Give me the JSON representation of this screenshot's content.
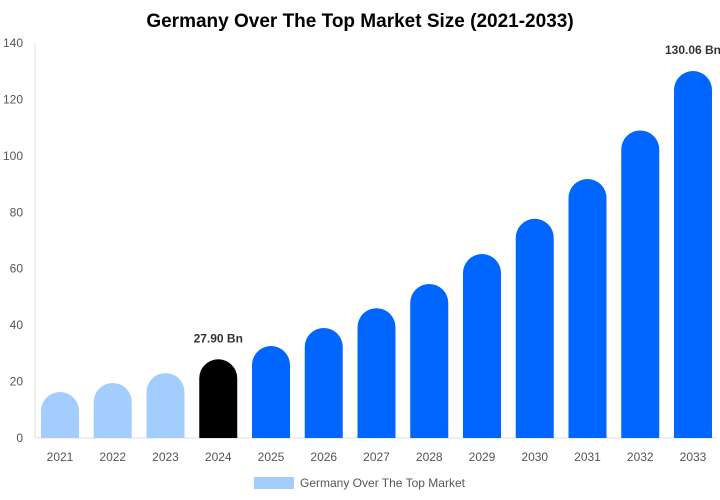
{
  "chart_data": {
    "type": "bar",
    "title": "Germany Over The Top Market Size (2021-2033)",
    "xlabel": "",
    "ylabel": "",
    "ylim": [
      0,
      140
    ],
    "yticks": [
      0,
      20,
      40,
      60,
      80,
      100,
      120,
      140
    ],
    "grid": false,
    "legend_position": "bottom",
    "categories": [
      "2021",
      "2022",
      "2023",
      "2024",
      "2025",
      "2026",
      "2027",
      "2028",
      "2029",
      "2030",
      "2031",
      "2032",
      "2033"
    ],
    "series": [
      {
        "name": "Germany Over The Top Market",
        "values": [
          16.3,
          19.5,
          23.0,
          27.9,
          32.6,
          39.0,
          46.0,
          54.6,
          65.2,
          77.7,
          91.8,
          109.0,
          130.06
        ]
      }
    ],
    "bar_colors": [
      "#a3cdfc",
      "#a3cdfc",
      "#a3cdfc",
      "#000000",
      "#0066ff",
      "#0066ff",
      "#0066ff",
      "#0066ff",
      "#0066ff",
      "#0066ff",
      "#0066ff",
      "#0066ff",
      "#0066ff"
    ],
    "legend_color": "#a3cdfc",
    "data_labels": [
      {
        "index": 3,
        "text": "27.90 Bn"
      },
      {
        "index": 12,
        "text": "130.06 Bn"
      }
    ]
  }
}
